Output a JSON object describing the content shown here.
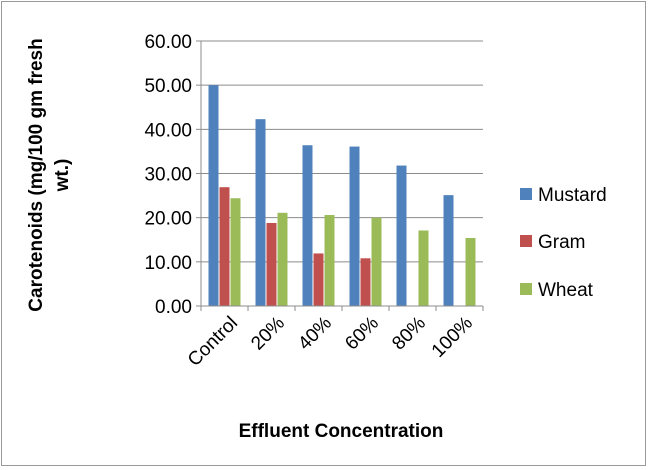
{
  "chart_data": {
    "type": "bar",
    "title": "",
    "xlabel": "Effluent Concentration",
    "ylabel_line1": "Carotenoids (mg/100 gm fresh",
    "ylabel_line2": "wt.)",
    "categories": [
      "Control",
      "20%",
      "40%",
      "60%",
      "80%",
      "100%"
    ],
    "y_ticks": [
      "0.00",
      "10.00",
      "20.00",
      "30.00",
      "40.00",
      "50.00",
      "60.00"
    ],
    "ylim": [
      0,
      60
    ],
    "grid": true,
    "legend_position": "right",
    "series": [
      {
        "name": "Mustard",
        "color": "#4f81bd",
        "values": [
          50.0,
          42.3,
          36.4,
          36.1,
          31.8,
          25.1
        ]
      },
      {
        "name": "Gram",
        "color": "#c0504d",
        "values": [
          26.9,
          18.8,
          11.9,
          10.8,
          null,
          null
        ]
      },
      {
        "name": "Wheat",
        "color": "#9bbb59",
        "values": [
          24.4,
          21.1,
          20.6,
          20.0,
          17.1,
          15.4
        ]
      }
    ]
  }
}
